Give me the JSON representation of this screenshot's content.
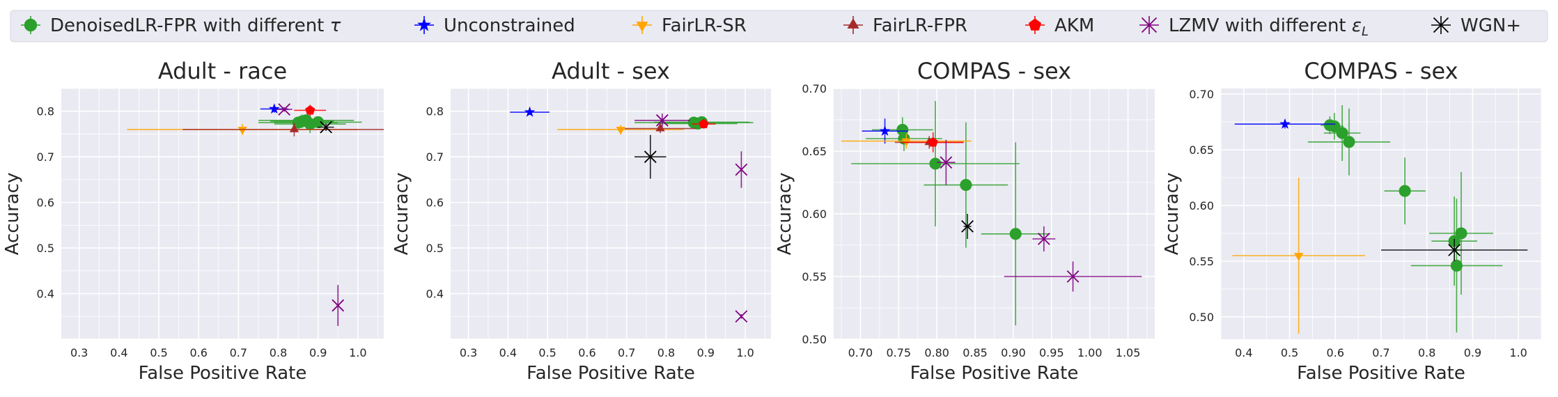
{
  "colors": {
    "denoised": "#2ca02c",
    "unconstrained": "#0000ff",
    "fairlr_sr": "#ffa500",
    "fairlr_fpr": "#a52a2a",
    "akm": "#ff0000",
    "lzmv": "#800080",
    "wgn": "#000000",
    "panel_bg": "#eaeaf2",
    "grid": "#ffffff",
    "legend_bg": "#eaeaf2"
  },
  "legend": {
    "items": [
      {
        "key": "denoised",
        "label": "DenoisedLR-FPR with different ",
        "math": "τ",
        "marker": "circle",
        "color": "#2ca02c"
      },
      {
        "key": "unconstrained",
        "label": "Unconstrained",
        "math": "",
        "marker": "star",
        "color": "#0000ff"
      },
      {
        "key": "fairlr_sr",
        "label": "FairLR-SR",
        "math": "",
        "marker": "tri_down",
        "color": "#ffa500"
      },
      {
        "key": "fairlr_fpr",
        "label": "FairLR-FPR",
        "math": "",
        "marker": "tri_up",
        "color": "#a52a2a"
      },
      {
        "key": "akm",
        "label": "AKM",
        "math": "",
        "marker": "pentagon",
        "color": "#ff0000"
      },
      {
        "key": "lzmv",
        "label": "LZMV with different ",
        "math": "ε",
        "math_sub": "L",
        "marker": "x",
        "color": "#800080"
      },
      {
        "key": "wgn",
        "label": "WGN+",
        "math": "",
        "marker": "x",
        "color": "#000000"
      }
    ]
  },
  "chart_data": [
    {
      "type": "scatter",
      "title": "Adult - race",
      "xlabel": "False Positive Rate",
      "ylabel": "Accuracy",
      "xlim": [
        0.255,
        1.065
      ],
      "ylim": [
        0.3,
        0.85
      ],
      "xticks": [
        "0.3",
        "0.4",
        "0.5",
        "0.6",
        "0.7",
        "0.8",
        "0.9",
        "1.0"
      ],
      "xtick_values": [
        0.3,
        0.4,
        0.5,
        0.6,
        0.7,
        0.8,
        0.9,
        1.0
      ],
      "yticks": [
        "0.4",
        "0.5",
        "0.6",
        "0.7",
        "0.8"
      ],
      "ytick_values": [
        0.4,
        0.5,
        0.6,
        0.7,
        0.8
      ],
      "grid": true,
      "series": [
        {
          "key": "denoised",
          "points": [
            {
              "x": 0.85,
              "y": 0.775,
              "xerr": 0.1,
              "yerr": 0.01
            },
            {
              "x": 0.86,
              "y": 0.778,
              "xerr": 0.08,
              "yerr": 0.015
            },
            {
              "x": 0.87,
              "y": 0.78,
              "xerr": 0.12,
              "yerr": 0.012
            },
            {
              "x": 0.88,
              "y": 0.772,
              "xerr": 0.09,
              "yerr": 0.02
            },
            {
              "x": 0.9,
              "y": 0.776,
              "xerr": 0.11,
              "yerr": 0.01
            }
          ]
        },
        {
          "key": "unconstrained",
          "points": [
            {
              "x": 0.79,
              "y": 0.805,
              "xerr": 0.035,
              "yerr": 0.008
            }
          ]
        },
        {
          "key": "fairlr_sr",
          "points": [
            {
              "x": 0.71,
              "y": 0.76,
              "xerr": 0.29,
              "yerr": 0.012
            }
          ]
        },
        {
          "key": "fairlr_fpr",
          "points": [
            {
              "x": 0.84,
              "y": 0.76,
              "xerr": 0.28,
              "yerr": 0.015
            }
          ]
        },
        {
          "key": "akm",
          "points": [
            {
              "x": 0.88,
              "y": 0.802,
              "xerr": 0.04,
              "yerr": 0.012
            }
          ]
        },
        {
          "key": "lzmv",
          "points": [
            {
              "x": 0.815,
              "y": 0.804,
              "xerr": 0.02,
              "yerr": 0.005
            },
            {
              "x": 0.95,
              "y": 0.374,
              "xerr": 0.0,
              "yerr": 0.045
            }
          ]
        },
        {
          "key": "wgn",
          "points": [
            {
              "x": 0.92,
              "y": 0.765,
              "xerr": 0.02,
              "yerr": 0.008
            }
          ]
        }
      ]
    },
    {
      "type": "scatter",
      "title": "Adult - sex",
      "xlabel": "False Positive Rate",
      "ylabel": "Accuracy",
      "xlim": [
        0.255,
        1.065
      ],
      "ylim": [
        0.3,
        0.85
      ],
      "xticks": [
        "0.3",
        "0.4",
        "0.5",
        "0.6",
        "0.7",
        "0.8",
        "0.9",
        "1.0"
      ],
      "xtick_values": [
        0.3,
        0.4,
        0.5,
        0.6,
        0.7,
        0.8,
        0.9,
        1.0
      ],
      "yticks": [
        "0.4",
        "0.5",
        "0.6",
        "0.7",
        "0.8"
      ],
      "ytick_values": [
        0.4,
        0.5,
        0.6,
        0.7,
        0.8
      ],
      "grid": true,
      "series": [
        {
          "key": "denoised",
          "points": [
            {
              "x": 0.87,
              "y": 0.775,
              "xerr": 0.15,
              "yerr": 0.008
            },
            {
              "x": 0.88,
              "y": 0.773,
              "xerr": 0.1,
              "yerr": 0.01
            },
            {
              "x": 0.89,
              "y": 0.776,
              "xerr": 0.12,
              "yerr": 0.008
            }
          ]
        },
        {
          "key": "unconstrained",
          "points": [
            {
              "x": 0.455,
              "y": 0.798,
              "xerr": 0.05,
              "yerr": 0.006
            }
          ]
        },
        {
          "key": "fairlr_sr",
          "points": [
            {
              "x": 0.685,
              "y": 0.76,
              "xerr": 0.16,
              "yerr": 0.01
            }
          ]
        },
        {
          "key": "fairlr_fpr",
          "points": [
            {
              "x": 0.785,
              "y": 0.762,
              "xerr": 0.09,
              "yerr": 0.01
            }
          ]
        },
        {
          "key": "akm",
          "points": [
            {
              "x": 0.895,
              "y": 0.772,
              "xerr": 0.03,
              "yerr": 0.01
            }
          ]
        },
        {
          "key": "lzmv",
          "points": [
            {
              "x": 0.79,
              "y": 0.78,
              "xerr": 0.07,
              "yerr": 0.015
            },
            {
              "x": 0.99,
              "y": 0.672,
              "xerr": 0.0,
              "yerr": 0.04
            },
            {
              "x": 0.99,
              "y": 0.35,
              "xerr": 0.0,
              "yerr": 0.005
            }
          ]
        },
        {
          "key": "wgn",
          "points": [
            {
              "x": 0.76,
              "y": 0.7,
              "xerr": 0.04,
              "yerr": 0.048
            }
          ]
        }
      ]
    },
    {
      "type": "scatter",
      "title": "COMPAS - sex",
      "xlabel": "False Positive Rate",
      "ylabel": "Accuracy",
      "xlim": [
        0.665,
        1.085
      ],
      "ylim": [
        0.5,
        0.7
      ],
      "xticks": [
        "0.70",
        "0.75",
        "0.80",
        "0.85",
        "0.90",
        "0.95",
        "1.00",
        "1.05"
      ],
      "xtick_values": [
        0.7,
        0.75,
        0.8,
        0.85,
        0.9,
        0.95,
        1.0,
        1.05
      ],
      "yticks": [
        "0.50",
        "0.55",
        "0.60",
        "0.65",
        "0.70"
      ],
      "ytick_values": [
        0.5,
        0.55,
        0.6,
        0.65,
        0.7
      ],
      "grid": true,
      "series": [
        {
          "key": "denoised",
          "points": [
            {
              "x": 0.755,
              "y": 0.667,
              "xerr": 0.04,
              "yerr": 0.01
            },
            {
              "x": 0.757,
              "y": 0.66,
              "xerr": 0.05,
              "yerr": 0.01
            },
            {
              "x": 0.798,
              "y": 0.64,
              "xerr": 0.11,
              "yerr": 0.05
            },
            {
              "x": 0.838,
              "y": 0.623,
              "xerr": 0.055,
              "yerr": 0.05
            },
            {
              "x": 0.903,
              "y": 0.584,
              "xerr": 0.045,
              "yerr": 0.073
            }
          ]
        },
        {
          "key": "unconstrained",
          "points": [
            {
              "x": 0.732,
              "y": 0.666,
              "xerr": 0.03,
              "yerr": 0.01
            }
          ]
        },
        {
          "key": "fairlr_sr",
          "points": [
            {
              "x": 0.76,
              "y": 0.658,
              "xerr": 0.085,
              "yerr": 0.006
            }
          ]
        },
        {
          "key": "fairlr_fpr",
          "points": [
            {
              "x": 0.79,
              "y": 0.657,
              "xerr": 0.045,
              "yerr": 0.005
            }
          ]
        },
        {
          "key": "akm",
          "points": [
            {
              "x": 0.795,
              "y": 0.657,
              "xerr": 0.04,
              "yerr": 0.008
            }
          ]
        },
        {
          "key": "lzmv",
          "points": [
            {
              "x": 0.812,
              "y": 0.641,
              "xerr": 0.012,
              "yerr": 0.018
            },
            {
              "x": 0.94,
              "y": 0.58,
              "xerr": 0.015,
              "yerr": 0.01
            },
            {
              "x": 0.978,
              "y": 0.55,
              "xerr": 0.09,
              "yerr": 0.012
            }
          ]
        },
        {
          "key": "wgn",
          "points": [
            {
              "x": 0.84,
              "y": 0.59,
              "xerr": 0.005,
              "yerr": 0.01
            }
          ]
        }
      ]
    },
    {
      "type": "scatter",
      "title": "COMPAS - sex",
      "xlabel": "False Positive Rate",
      "ylabel": "Accuracy",
      "xlim": [
        0.35,
        1.05
      ],
      "ylim": [
        0.48,
        0.705
      ],
      "xticks": [
        "0.4",
        "0.5",
        "0.6",
        "0.7",
        "0.8",
        "0.9",
        "1.0"
      ],
      "xtick_values": [
        0.4,
        0.5,
        0.6,
        0.7,
        0.8,
        0.9,
        1.0
      ],
      "yticks": [
        "0.50",
        "0.55",
        "0.60",
        "0.65",
        "0.70"
      ],
      "ytick_values": [
        0.5,
        0.55,
        0.6,
        0.65,
        0.7
      ],
      "grid": true,
      "series": [
        {
          "key": "denoised",
          "points": [
            {
              "x": 0.588,
              "y": 0.672,
              "xerr": 0.02,
              "yerr": 0.008
            },
            {
              "x": 0.598,
              "y": 0.671,
              "xerr": 0.02,
              "yerr": 0.012
            },
            {
              "x": 0.615,
              "y": 0.665,
              "xerr": 0.04,
              "yerr": 0.025
            },
            {
              "x": 0.63,
              "y": 0.657,
              "xerr": 0.09,
              "yerr": 0.03
            },
            {
              "x": 0.752,
              "y": 0.613,
              "xerr": 0.045,
              "yerr": 0.03
            },
            {
              "x": 0.86,
              "y": 0.568,
              "xerr": 0.05,
              "yerr": 0.04
            },
            {
              "x": 0.865,
              "y": 0.546,
              "xerr": 0.1,
              "yerr": 0.06
            },
            {
              "x": 0.875,
              "y": 0.575,
              "xerr": 0.07,
              "yerr": 0.055
            }
          ]
        },
        {
          "key": "unconstrained",
          "points": [
            {
              "x": 0.49,
              "y": 0.673,
              "xerr": 0.11,
              "yerr": 0.004
            }
          ]
        },
        {
          "key": "fairlr_sr",
          "points": [
            {
              "x": 0.52,
              "y": 0.555,
              "xerr": 0.145,
              "yerr": 0.07
            }
          ]
        },
        {
          "key": "fairlr_fpr",
          "points": []
        },
        {
          "key": "akm",
          "points": []
        },
        {
          "key": "lzmv",
          "points": []
        },
        {
          "key": "wgn",
          "points": [
            {
              "x": 0.86,
              "y": 0.56,
              "xerr": 0.16,
              "yerr": 0.01
            }
          ]
        }
      ]
    }
  ]
}
